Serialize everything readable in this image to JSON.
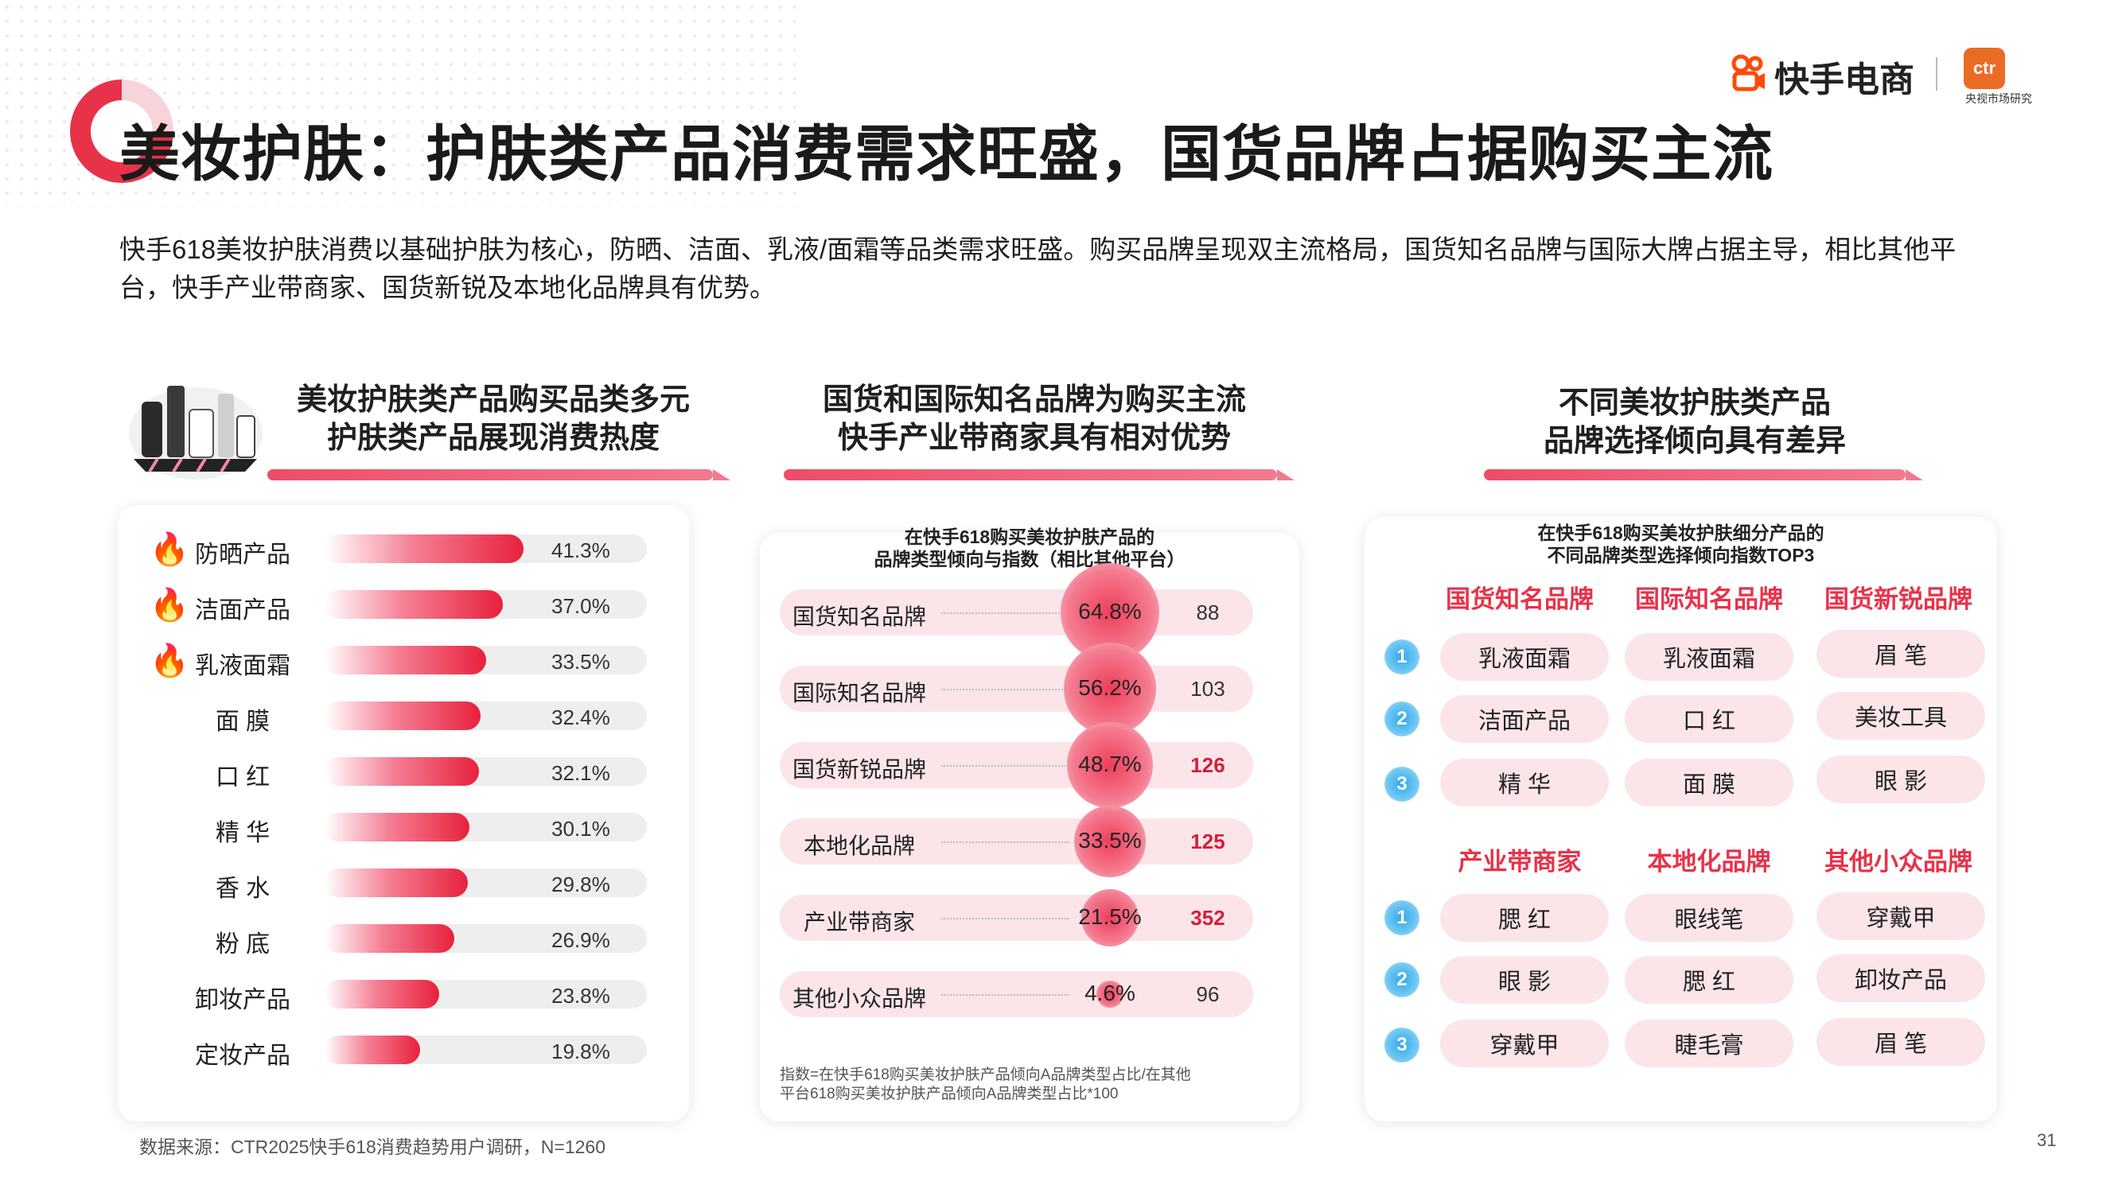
{
  "header": {
    "title": "美妆护肤：护肤类产品消费需求旺盛，国货品牌占据购买主流",
    "brand_name": "快手电商",
    "ctr_logo_text": "ctr",
    "ctr_cn": "央视市场研究",
    "intro": "快手618美妆护肤消费以基础护肤为核心，防晒、洁面、乳液/面霜等品类需求旺盛。购买品牌呈现双主流格局，国货知名品牌与国际大牌占据主导，相比其他平台，快手产业带商家、国货新锐及本地化品牌具有优势。"
  },
  "panel1": {
    "heading_line1": "美妆护肤类产品购买品类多元",
    "heading_line2": "护肤类产品展现消费热度"
  },
  "panel2": {
    "heading_line1": "国货和国际知名品牌为购买主流",
    "heading_line2": "快手产业带商家具有相对优势",
    "sub_line1": "在快手618购买美妆护肤产品的",
    "sub_line2": "品牌类型倾向与指数（相比其他平台）",
    "note_line1": "指数=在快手618购买美妆护肤产品倾向A品牌类型占比/在其他",
    "note_line2": "平台618购买美妆护肤产品倾向A品牌类型占比*100"
  },
  "panel3": {
    "heading_line1": "不同美妆护肤类产品",
    "heading_line2": "品牌选择倾向具有差异",
    "sub_line1": "在快手618购买美妆护肤细分产品的",
    "sub_line2": "不同品牌类型选择倾向指数TOP3",
    "groups": [
      {
        "headers": [
          "国货知名品牌",
          "国际知名品牌",
          "国货新锐品牌"
        ],
        "rows": [
          {
            "rank": "1",
            "items": [
              "乳液面霜",
              "乳液面霜",
              "眉 笔"
            ]
          },
          {
            "rank": "2",
            "items": [
              "洁面产品",
              "口 红",
              "美妆工具"
            ]
          },
          {
            "rank": "3",
            "items": [
              "精 华",
              "面 膜",
              "眼 影"
            ]
          }
        ]
      },
      {
        "headers": [
          "产业带商家",
          "本地化品牌",
          "其他小众品牌"
        ],
        "rows": [
          {
            "rank": "1",
            "items": [
              "腮 红",
              "眼线笔",
              "穿戴甲"
            ]
          },
          {
            "rank": "2",
            "items": [
              "眼 影",
              "腮 红",
              "卸妆产品"
            ]
          },
          {
            "rank": "3",
            "items": [
              "穿戴甲",
              "睫毛膏",
              "眉 笔"
            ]
          }
        ]
      }
    ]
  },
  "footer": {
    "source": "数据来源：CTR2025快手618消费趋势用户调研，N=1260",
    "page": "31"
  },
  "colors": {
    "accent": "#e7324a",
    "pill": "#fbe5e8",
    "rank": "#2fa8e8",
    "ctr": "#ea6b26"
  },
  "chart_data": [
    {
      "type": "bar",
      "orientation": "horizontal",
      "categories": [
        "防晒产品",
        "洁面产品",
        "乳液面霜",
        "面 膜",
        "口 红",
        "精 华",
        "香 水",
        "粉 底",
        "卸妆产品",
        "定妆产品"
      ],
      "values": [
        41.3,
        37.0,
        33.5,
        32.4,
        32.1,
        30.1,
        29.8,
        26.9,
        23.8,
        19.8
      ],
      "labels": [
        "41.3%",
        "37.0%",
        "33.5%",
        "32.4%",
        "32.1%",
        "30.1%",
        "29.8%",
        "26.9%",
        "23.8%",
        "19.8%"
      ],
      "highlighted_with_flame_icon": [
        "防晒产品",
        "洁面产品",
        "乳液面霜"
      ],
      "xlim": [
        0,
        100
      ],
      "unit": "%"
    },
    {
      "type": "bubble",
      "categories": [
        "国货知名品牌",
        "国际知名品牌",
        "国货新锐品牌",
        "本地化品牌",
        "产业带商家",
        "其他小众品牌"
      ],
      "share": [
        64.8,
        56.2,
        48.7,
        33.5,
        21.5,
        4.6
      ],
      "share_labels": [
        "64.8%",
        "56.2%",
        "48.7%",
        "33.5%",
        "21.5%",
        "4.6%"
      ],
      "index": [
        88,
        103,
        126,
        125,
        352,
        96
      ],
      "index_labels": [
        "88",
        "103",
        "126",
        "125",
        "352",
        "96"
      ],
      "highlighted_index": [
        false,
        false,
        true,
        true,
        true,
        false
      ]
    }
  ]
}
